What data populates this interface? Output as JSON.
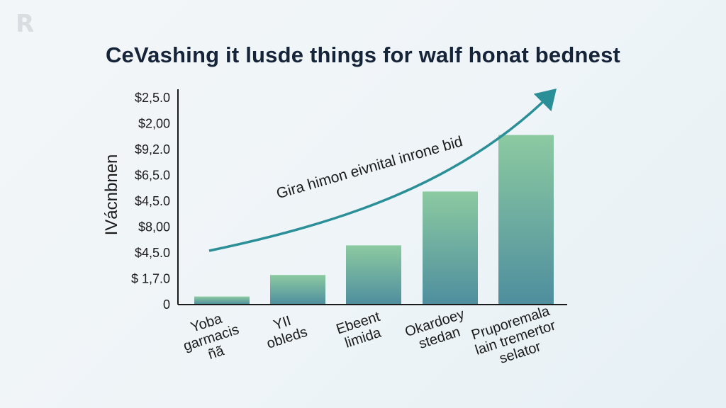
{
  "logo": "R",
  "chart_data": {
    "type": "bar",
    "title": "CeVashing it lusde things for walf honat bednest",
    "ylabel": "IVácnbnen",
    "ytick_labels": [
      "0",
      "$ 1,7.0",
      "$4,5.0",
      "$8,00",
      "$4,5.0",
      "$6,5.0",
      "$9,2.0",
      "$2,00",
      "$2,5.0"
    ],
    "categories": [
      [
        "Yoba",
        "garmacis",
        "ñã"
      ],
      [
        "YII",
        "obleds"
      ],
      [
        "Ebeent",
        "limida"
      ],
      [
        "Okardoey",
        "stedan"
      ],
      [
        "Pruporemala",
        "lain tremertor",
        "selator"
      ]
    ],
    "values": [
      0.3,
      1.1,
      2.2,
      4.2,
      6.3
    ],
    "ylim": [
      0,
      8
    ],
    "trend_annotation": "Gira himon eivnital inrone bid",
    "colors": {
      "bar_top": "#8ccaa1",
      "bar_bottom": "#4e8e9e",
      "trend": "#2b8f98",
      "axis": "#1a1a1a"
    }
  }
}
